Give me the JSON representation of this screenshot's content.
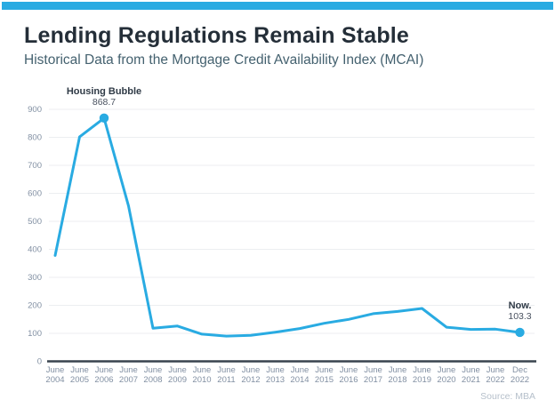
{
  "header": {
    "title": "Lending Regulations Remain Stable",
    "subtitle": "Historical Data from the Mortgage Credit Availability Index (MCAI)"
  },
  "footer": {
    "source": "Source: MBA"
  },
  "colors": {
    "accent": "#29abe2",
    "title_text": "#242e38",
    "subtitle_text": "#44616f",
    "tick_label": "#8290a3",
    "gridline": "#eceef1",
    "axis_line": "#39434e",
    "annotation_label": "#2f3a46",
    "annotation_value": "#4a5260",
    "source_text": "#b6c0cb"
  },
  "chart_data": {
    "type": "line",
    "categories": [
      "June 2004",
      "June 2005",
      "June 2006",
      "June 2007",
      "June 2008",
      "June 2009",
      "June 2010",
      "June 2011",
      "June 2012",
      "June 2013",
      "June 2014",
      "June 2015",
      "June 2016",
      "June 2017",
      "June 2018",
      "June 2019",
      "June 2020",
      "June 2021",
      "June 2022",
      "Dec 2022"
    ],
    "values": [
      378,
      802,
      868.7,
      555,
      118,
      126,
      97,
      90,
      93,
      104,
      117,
      136,
      150,
      170,
      178,
      189,
      122,
      114,
      115,
      103.3
    ],
    "title": "",
    "xlabel": "",
    "ylabel": "",
    "ylim": [
      0,
      900
    ],
    "ytick_step": 100,
    "grid": true,
    "legend": false,
    "annotations": [
      {
        "label": "Housing Bubble",
        "value_label": "868.7",
        "category": "June 2006",
        "index": 2,
        "marker": true
      },
      {
        "label": "Now.",
        "value_label": "103.3",
        "category": "Dec 2022",
        "index": 19,
        "marker": true
      }
    ]
  }
}
